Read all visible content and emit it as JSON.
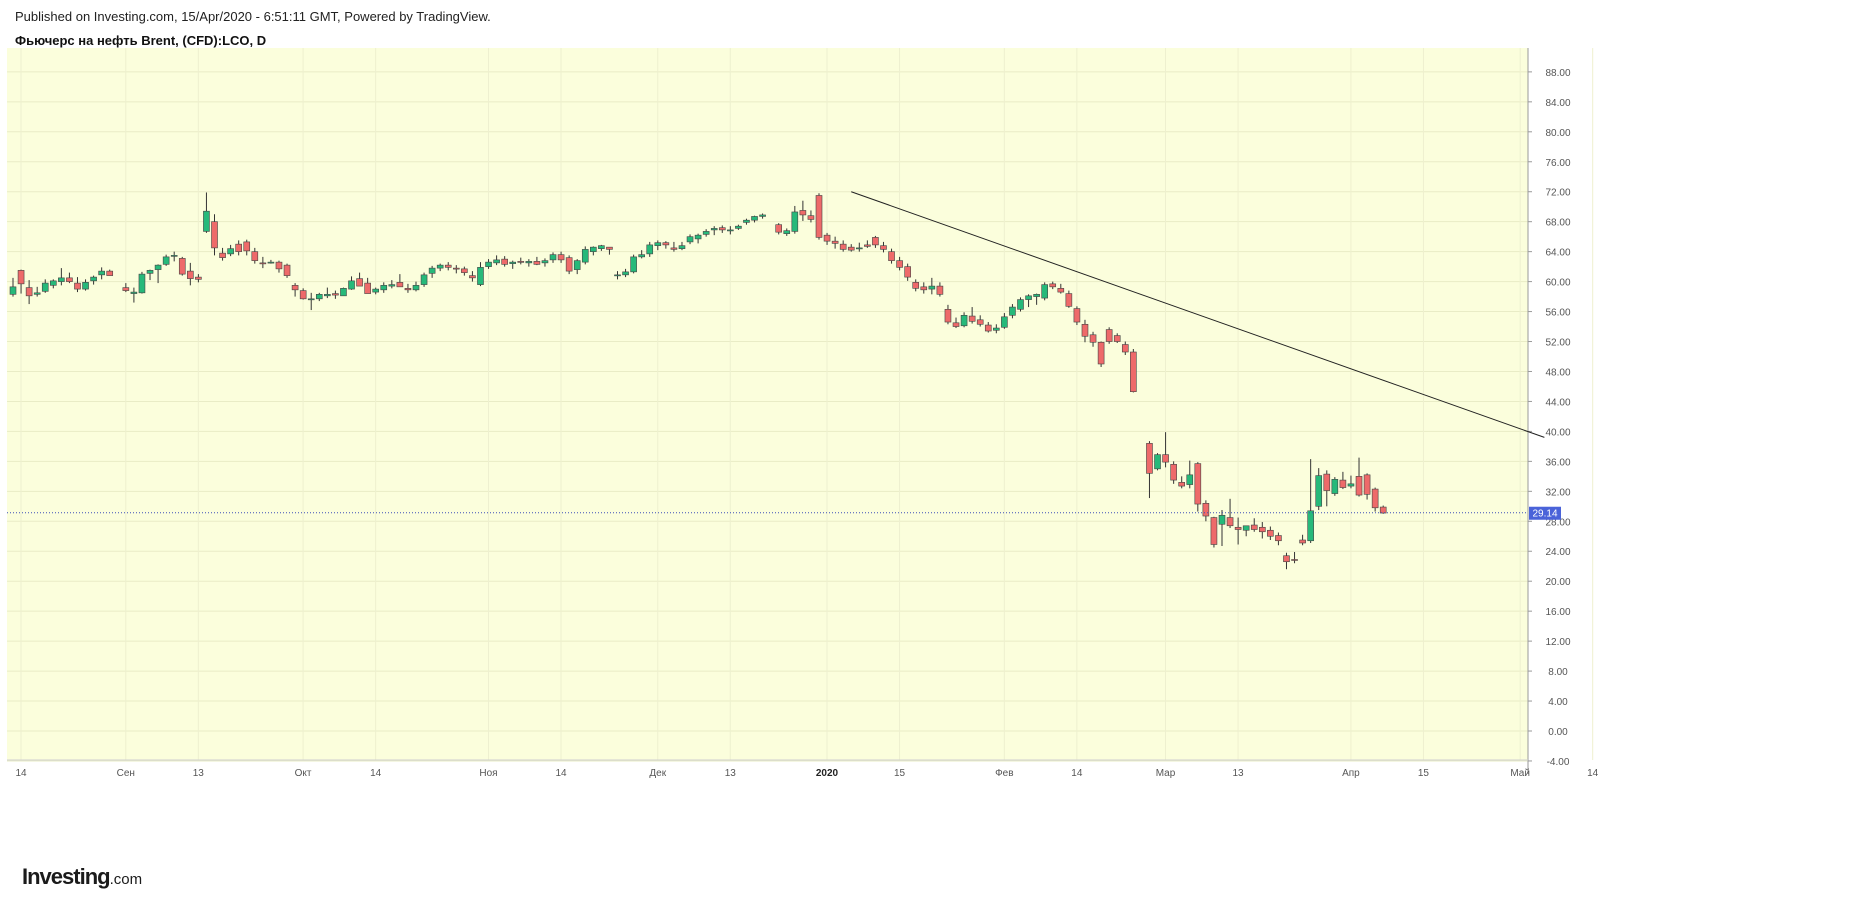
{
  "header": {
    "published": "Published on Investing.com, 15/Apr/2020 - 6:51:11 GMT, Powered by TradingView.",
    "symbol_title": "Фьючерс на нефть Brent, (CFD):LCO, D"
  },
  "logo": {
    "brand": "Investing",
    "suffix": ".com"
  },
  "colors": {
    "plot_bg": "#fbfedc",
    "up": "#26b97a",
    "down": "#ee6a6a",
    "wick": "#333333",
    "price_line": "#3c4fb8",
    "price_badge": "#4a63d9",
    "trendline": "#222222"
  },
  "chart_data": {
    "type": "candlestick",
    "timeframe": "D",
    "ylim": [
      -4,
      90
    ],
    "y_ticks": [
      "88.00",
      "84.00",
      "80.00",
      "76.00",
      "72.00",
      "68.00",
      "64.00",
      "60.00",
      "56.00",
      "52.00",
      "48.00",
      "44.00",
      "40.00",
      "36.00",
      "32.00",
      "28.00",
      "24.00",
      "20.00",
      "16.00",
      "12.00",
      "8.00",
      "4.00",
      "0.00",
      "-4.00"
    ],
    "x_ticks": [
      {
        "label": "14",
        "x": 0,
        "bold": false
      },
      {
        "label": "Сен",
        "x": 13,
        "bold": false
      },
      {
        "label": "13",
        "x": 22,
        "bold": false
      },
      {
        "label": "Окт",
        "x": 35,
        "bold": false
      },
      {
        "label": "14",
        "x": 44,
        "bold": false
      },
      {
        "label": "Ноя",
        "x": 58,
        "bold": false
      },
      {
        "label": "14",
        "x": 67,
        "bold": false
      },
      {
        "label": "Дек",
        "x": 79,
        "bold": false
      },
      {
        "label": "13",
        "x": 88,
        "bold": false
      },
      {
        "label": "2020",
        "x": 100,
        "bold": true
      },
      {
        "label": "15",
        "x": 109,
        "bold": false
      },
      {
        "label": "Фев",
        "x": 122,
        "bold": false
      },
      {
        "label": "14",
        "x": 131,
        "bold": false
      },
      {
        "label": "Мар",
        "x": 142,
        "bold": false
      },
      {
        "label": "13",
        "x": 151,
        "bold": false
      },
      {
        "label": "Апр",
        "x": 165,
        "bold": false
      },
      {
        "label": "15",
        "x": 174,
        "bold": false
      },
      {
        "label": "Май",
        "x": 186,
        "bold": false
      },
      {
        "label": "14",
        "x": 195,
        "bold": false
      }
    ],
    "last_price": 29.14,
    "trendline": {
      "from": {
        "x": 104,
        "y": 72.0
      },
      "to": {
        "x": 190,
        "y": 39.2
      }
    },
    "candles": [
      [
        0,
        58.3,
        60.5,
        58.0,
        59.3
      ],
      [
        1,
        61.5,
        61.6,
        58.4,
        59.7
      ],
      [
        2,
        59.2,
        60.2,
        57.0,
        58.1
      ],
      [
        3,
        58.3,
        59.3,
        58.0,
        58.5
      ],
      [
        4,
        58.7,
        60.3,
        58.5,
        59.8
      ],
      [
        5,
        59.5,
        60.3,
        59.1,
        60.1
      ],
      [
        6,
        60.0,
        61.8,
        59.5,
        60.5
      ],
      [
        7,
        60.5,
        61.2,
        59.8,
        60.0
      ],
      [
        8,
        59.8,
        60.6,
        58.6,
        59.0
      ],
      [
        9,
        59.0,
        60.3,
        58.8,
        59.9
      ],
      [
        10,
        60.1,
        60.8,
        59.6,
        60.6
      ],
      [
        11,
        60.9,
        61.9,
        60.3,
        61.4
      ],
      [
        12,
        61.4,
        61.6,
        60.8,
        60.8
      ],
      [
        14,
        59.2,
        59.8,
        58.6,
        58.8
      ],
      [
        15,
        58.4,
        59.2,
        57.2,
        58.6
      ],
      [
        16,
        58.5,
        61.3,
        58.4,
        61.0
      ],
      [
        17,
        61.1,
        61.6,
        60.2,
        61.5
      ],
      [
        18,
        61.6,
        62.3,
        59.8,
        62.2
      ],
      [
        19,
        62.3,
        63.6,
        62.1,
        63.3
      ],
      [
        20,
        63.4,
        64.0,
        62.7,
        63.5
      ],
      [
        21,
        63.1,
        63.3,
        60.8,
        61.0
      ],
      [
        22,
        61.4,
        62.5,
        59.5,
        60.4
      ],
      [
        23,
        60.6,
        61.0,
        59.9,
        60.3
      ],
      [
        24,
        66.7,
        71.9,
        66.5,
        69.4
      ],
      [
        25,
        68.0,
        69.0,
        63.5,
        64.5
      ],
      [
        26,
        63.8,
        64.5,
        62.8,
        63.2
      ],
      [
        27,
        63.7,
        64.9,
        63.4,
        64.4
      ],
      [
        28,
        65.0,
        65.5,
        63.5,
        64.0
      ],
      [
        29,
        65.3,
        65.6,
        63.5,
        64.1
      ],
      [
        30,
        64.0,
        64.5,
        62.4,
        62.8
      ],
      [
        31,
        62.5,
        63.3,
        61.8,
        62.4
      ],
      [
        32,
        62.5,
        62.9,
        62.4,
        62.6
      ],
      [
        33,
        62.6,
        62.8,
        61.2,
        61.7
      ],
      [
        34,
        62.2,
        62.4,
        60.5,
        60.8
      ],
      [
        35,
        59.5,
        59.8,
        58.0,
        58.9
      ],
      [
        36,
        58.8,
        59.1,
        57.6,
        57.7
      ],
      [
        37,
        57.7,
        58.5,
        56.2,
        57.7
      ],
      [
        38,
        57.7,
        58.5,
        57.4,
        58.3
      ],
      [
        39,
        58.1,
        59.2,
        57.8,
        58.3
      ],
      [
        40,
        58.4,
        58.8,
        57.7,
        58.2
      ],
      [
        41,
        58.1,
        59.2,
        58.1,
        59.1
      ],
      [
        42,
        59.0,
        60.7,
        58.9,
        60.1
      ],
      [
        43,
        60.4,
        61.2,
        59.8,
        59.4
      ],
      [
        44,
        59.8,
        60.5,
        58.9,
        58.4
      ],
      [
        45,
        58.6,
        59.2,
        58.3,
        59.0
      ],
      [
        46,
        58.9,
        59.9,
        58.5,
        59.5
      ],
      [
        47,
        59.4,
        60.2,
        59.1,
        59.6
      ],
      [
        48,
        59.9,
        61.0,
        59.5,
        59.3
      ],
      [
        49,
        59.1,
        59.7,
        58.5,
        58.9
      ],
      [
        50,
        58.9,
        60.0,
        58.7,
        59.5
      ],
      [
        51,
        59.6,
        61.2,
        59.3,
        60.9
      ],
      [
        52,
        61.1,
        62.1,
        60.5,
        61.8
      ],
      [
        53,
        61.8,
        62.4,
        61.4,
        62.2
      ],
      [
        54,
        62.2,
        62.6,
        61.5,
        61.9
      ],
      [
        55,
        61.8,
        62.2,
        61.1,
        61.7
      ],
      [
        56,
        61.7,
        62.0,
        60.8,
        61.2
      ],
      [
        57,
        60.8,
        61.4,
        60.0,
        60.5
      ],
      [
        58,
        59.6,
        62.6,
        59.4,
        61.9
      ],
      [
        59,
        62.0,
        63.0,
        61.7,
        62.6
      ],
      [
        60,
        62.5,
        63.5,
        62.2,
        62.9
      ],
      [
        61,
        63.0,
        63.4,
        62.0,
        62.3
      ],
      [
        62,
        62.4,
        62.8,
        61.7,
        62.6
      ],
      [
        63,
        62.7,
        63.2,
        62.3,
        62.6
      ],
      [
        64,
        62.5,
        63.0,
        62.0,
        62.7
      ],
      [
        65,
        62.7,
        63.3,
        62.2,
        62.3
      ],
      [
        66,
        62.5,
        63.1,
        62.0,
        62.8
      ],
      [
        67,
        62.9,
        63.9,
        62.5,
        63.6
      ],
      [
        68,
        63.6,
        64.0,
        62.5,
        62.9
      ],
      [
        69,
        63.2,
        63.5,
        61.0,
        61.4
      ],
      [
        70,
        61.6,
        63.0,
        61.0,
        62.8
      ],
      [
        71,
        62.6,
        64.7,
        62.3,
        64.3
      ],
      [
        72,
        64.0,
        64.7,
        63.5,
        64.6
      ],
      [
        73,
        64.4,
        64.9,
        64.1,
        64.8
      ],
      [
        74,
        64.6,
        64.6,
        63.6,
        64.3
      ],
      [
        75,
        60.9,
        61.4,
        60.3,
        60.9
      ],
      [
        76,
        60.9,
        61.7,
        60.6,
        61.3
      ],
      [
        77,
        61.3,
        63.6,
        61.1,
        63.3
      ],
      [
        78,
        63.3,
        64.2,
        63.1,
        63.6
      ],
      [
        79,
        63.7,
        65.3,
        63.3,
        64.9
      ],
      [
        80,
        64.8,
        65.5,
        64.2,
        65.2
      ],
      [
        81,
        65.2,
        65.4,
        64.4,
        64.9
      ],
      [
        82,
        64.5,
        65.3,
        64.0,
        64.3
      ],
      [
        83,
        64.4,
        65.3,
        64.2,
        64.8
      ],
      [
        84,
        65.3,
        66.3,
        65.0,
        66.0
      ],
      [
        85,
        65.7,
        66.4,
        65.1,
        66.2
      ],
      [
        86,
        66.3,
        67.0,
        66.0,
        66.7
      ],
      [
        87,
        66.9,
        67.4,
        66.2,
        67.1
      ],
      [
        88,
        67.2,
        67.5,
        66.5,
        66.9
      ],
      [
        89,
        66.9,
        67.4,
        66.3,
        66.9
      ],
      [
        90,
        67.1,
        67.6,
        66.9,
        67.4
      ],
      [
        91,
        67.9,
        68.4,
        67.6,
        68.2
      ],
      [
        92,
        68.2,
        68.8,
        67.9,
        68.7
      ],
      [
        93,
        68.7,
        69.1,
        68.4,
        68.9
      ],
      [
        95,
        67.6,
        67.8,
        66.3,
        66.6
      ],
      [
        96,
        66.4,
        67.1,
        66.1,
        66.8
      ],
      [
        97,
        66.7,
        70.1,
        66.4,
        69.3
      ],
      [
        98,
        69.5,
        70.8,
        68.1,
        68.9
      ],
      [
        99,
        68.8,
        69.5,
        67.9,
        68.3
      ],
      [
        100,
        71.5,
        71.8,
        65.6,
        65.9
      ],
      [
        101,
        66.2,
        66.5,
        64.9,
        65.4
      ],
      [
        102,
        65.4,
        66.0,
        64.4,
        65.1
      ],
      [
        103,
        65.0,
        65.5,
        64.0,
        64.3
      ],
      [
        104,
        64.6,
        65.0,
        64.0,
        64.2
      ],
      [
        105,
        64.4,
        65.2,
        64.0,
        64.5
      ],
      [
        106,
        64.9,
        65.5,
        64.5,
        64.7
      ],
      [
        107,
        65.9,
        66.1,
        64.5,
        64.9
      ],
      [
        108,
        64.8,
        65.3,
        63.9,
        64.3
      ],
      [
        109,
        64.0,
        64.4,
        62.4,
        62.8
      ],
      [
        110,
        62.8,
        63.3,
        61.5,
        61.9
      ],
      [
        111,
        62.0,
        62.4,
        60.1,
        60.6
      ],
      [
        112,
        59.9,
        60.3,
        58.7,
        59.1
      ],
      [
        113,
        59.3,
        59.9,
        58.4,
        58.9
      ],
      [
        114,
        59.0,
        60.5,
        58.3,
        59.4
      ],
      [
        115,
        59.4,
        59.9,
        58.0,
        58.3
      ],
      [
        116,
        56.3,
        56.9,
        54.3,
        54.6
      ],
      [
        117,
        54.5,
        55.2,
        53.8,
        54.0
      ],
      [
        118,
        54.1,
        55.9,
        53.9,
        55.5
      ],
      [
        119,
        55.4,
        56.6,
        54.4,
        54.7
      ],
      [
        120,
        54.9,
        55.5,
        54.0,
        54.3
      ],
      [
        121,
        54.2,
        54.6,
        53.2,
        53.4
      ],
      [
        122,
        53.5,
        54.3,
        53.1,
        53.8
      ],
      [
        123,
        53.9,
        55.8,
        53.7,
        55.3
      ],
      [
        124,
        55.5,
        57.0,
        55.1,
        56.6
      ],
      [
        125,
        56.3,
        57.9,
        56.0,
        57.6
      ],
      [
        126,
        57.6,
        58.3,
        56.6,
        58.1
      ],
      [
        127,
        58.0,
        58.4,
        56.9,
        58.3
      ],
      [
        128,
        57.8,
        59.9,
        57.5,
        59.6
      ],
      [
        129,
        59.7,
        60.0,
        59.0,
        59.3
      ],
      [
        130,
        59.1,
        59.7,
        58.4,
        58.6
      ],
      [
        131,
        58.4,
        58.8,
        56.5,
        56.7
      ],
      [
        132,
        56.4,
        56.7,
        54.2,
        54.6
      ],
      [
        133,
        54.3,
        54.9,
        51.9,
        52.7
      ],
      [
        134,
        52.9,
        53.3,
        51.3,
        51.9
      ],
      [
        135,
        51.9,
        52.0,
        48.6,
        49.0
      ],
      [
        136,
        53.6,
        53.9,
        51.7,
        52.0
      ],
      [
        137,
        52.8,
        53.1,
        51.8,
        52.0
      ],
      [
        138,
        51.6,
        52.0,
        50.2,
        50.6
      ],
      [
        139,
        50.6,
        51.0,
        45.2,
        45.3
      ],
      [
        141,
        38.4,
        38.7,
        31.1,
        34.4
      ],
      [
        142,
        35.0,
        37.1,
        34.8,
        36.9
      ],
      [
        143,
        36.9,
        39.9,
        35.2,
        35.9
      ],
      [
        144,
        35.6,
        36.0,
        33.0,
        33.5
      ],
      [
        145,
        33.2,
        34.0,
        32.4,
        32.7
      ],
      [
        146,
        32.9,
        36.1,
        32.4,
        34.2
      ],
      [
        147,
        35.7,
        35.9,
        29.3,
        30.3
      ],
      [
        148,
        30.4,
        30.8,
        28.0,
        28.7
      ],
      [
        149,
        28.5,
        28.6,
        24.5,
        24.9
      ],
      [
        150,
        27.6,
        29.5,
        24.7,
        28.8
      ],
      [
        151,
        28.5,
        31.0,
        27.1,
        27.4
      ],
      [
        152,
        27.2,
        28.5,
        24.9,
        26.9
      ],
      [
        153,
        26.8,
        27.4,
        26.0,
        27.4
      ],
      [
        154,
        27.5,
        28.4,
        26.6,
        26.9
      ],
      [
        155,
        27.2,
        27.9,
        25.7,
        26.6
      ],
      [
        156,
        26.8,
        27.3,
        25.5,
        26.0
      ],
      [
        157,
        26.1,
        26.5,
        24.8,
        25.4
      ],
      [
        158,
        23.4,
        23.8,
        21.6,
        22.6
      ],
      [
        159,
        22.9,
        23.9,
        22.4,
        22.8
      ],
      [
        160,
        25.5,
        26.2,
        24.8,
        25.1
      ],
      [
        161,
        25.4,
        36.3,
        25.1,
        29.4
      ],
      [
        162,
        30.0,
        35.1,
        29.5,
        34.1
      ],
      [
        163,
        34.3,
        34.8,
        30.0,
        32.1
      ],
      [
        164,
        31.7,
        33.9,
        31.4,
        33.6
      ],
      [
        165,
        33.5,
        34.6,
        32.3,
        32.5
      ],
      [
        166,
        32.7,
        34.1,
        32.4,
        33.0
      ],
      [
        167,
        34.0,
        36.5,
        31.3,
        31.5
      ],
      [
        168,
        34.2,
        34.4,
        30.9,
        31.6
      ],
      [
        169,
        32.3,
        32.5,
        29.3,
        29.8
      ],
      [
        170,
        29.9,
        30.1,
        29.0,
        29.1
      ]
    ]
  }
}
